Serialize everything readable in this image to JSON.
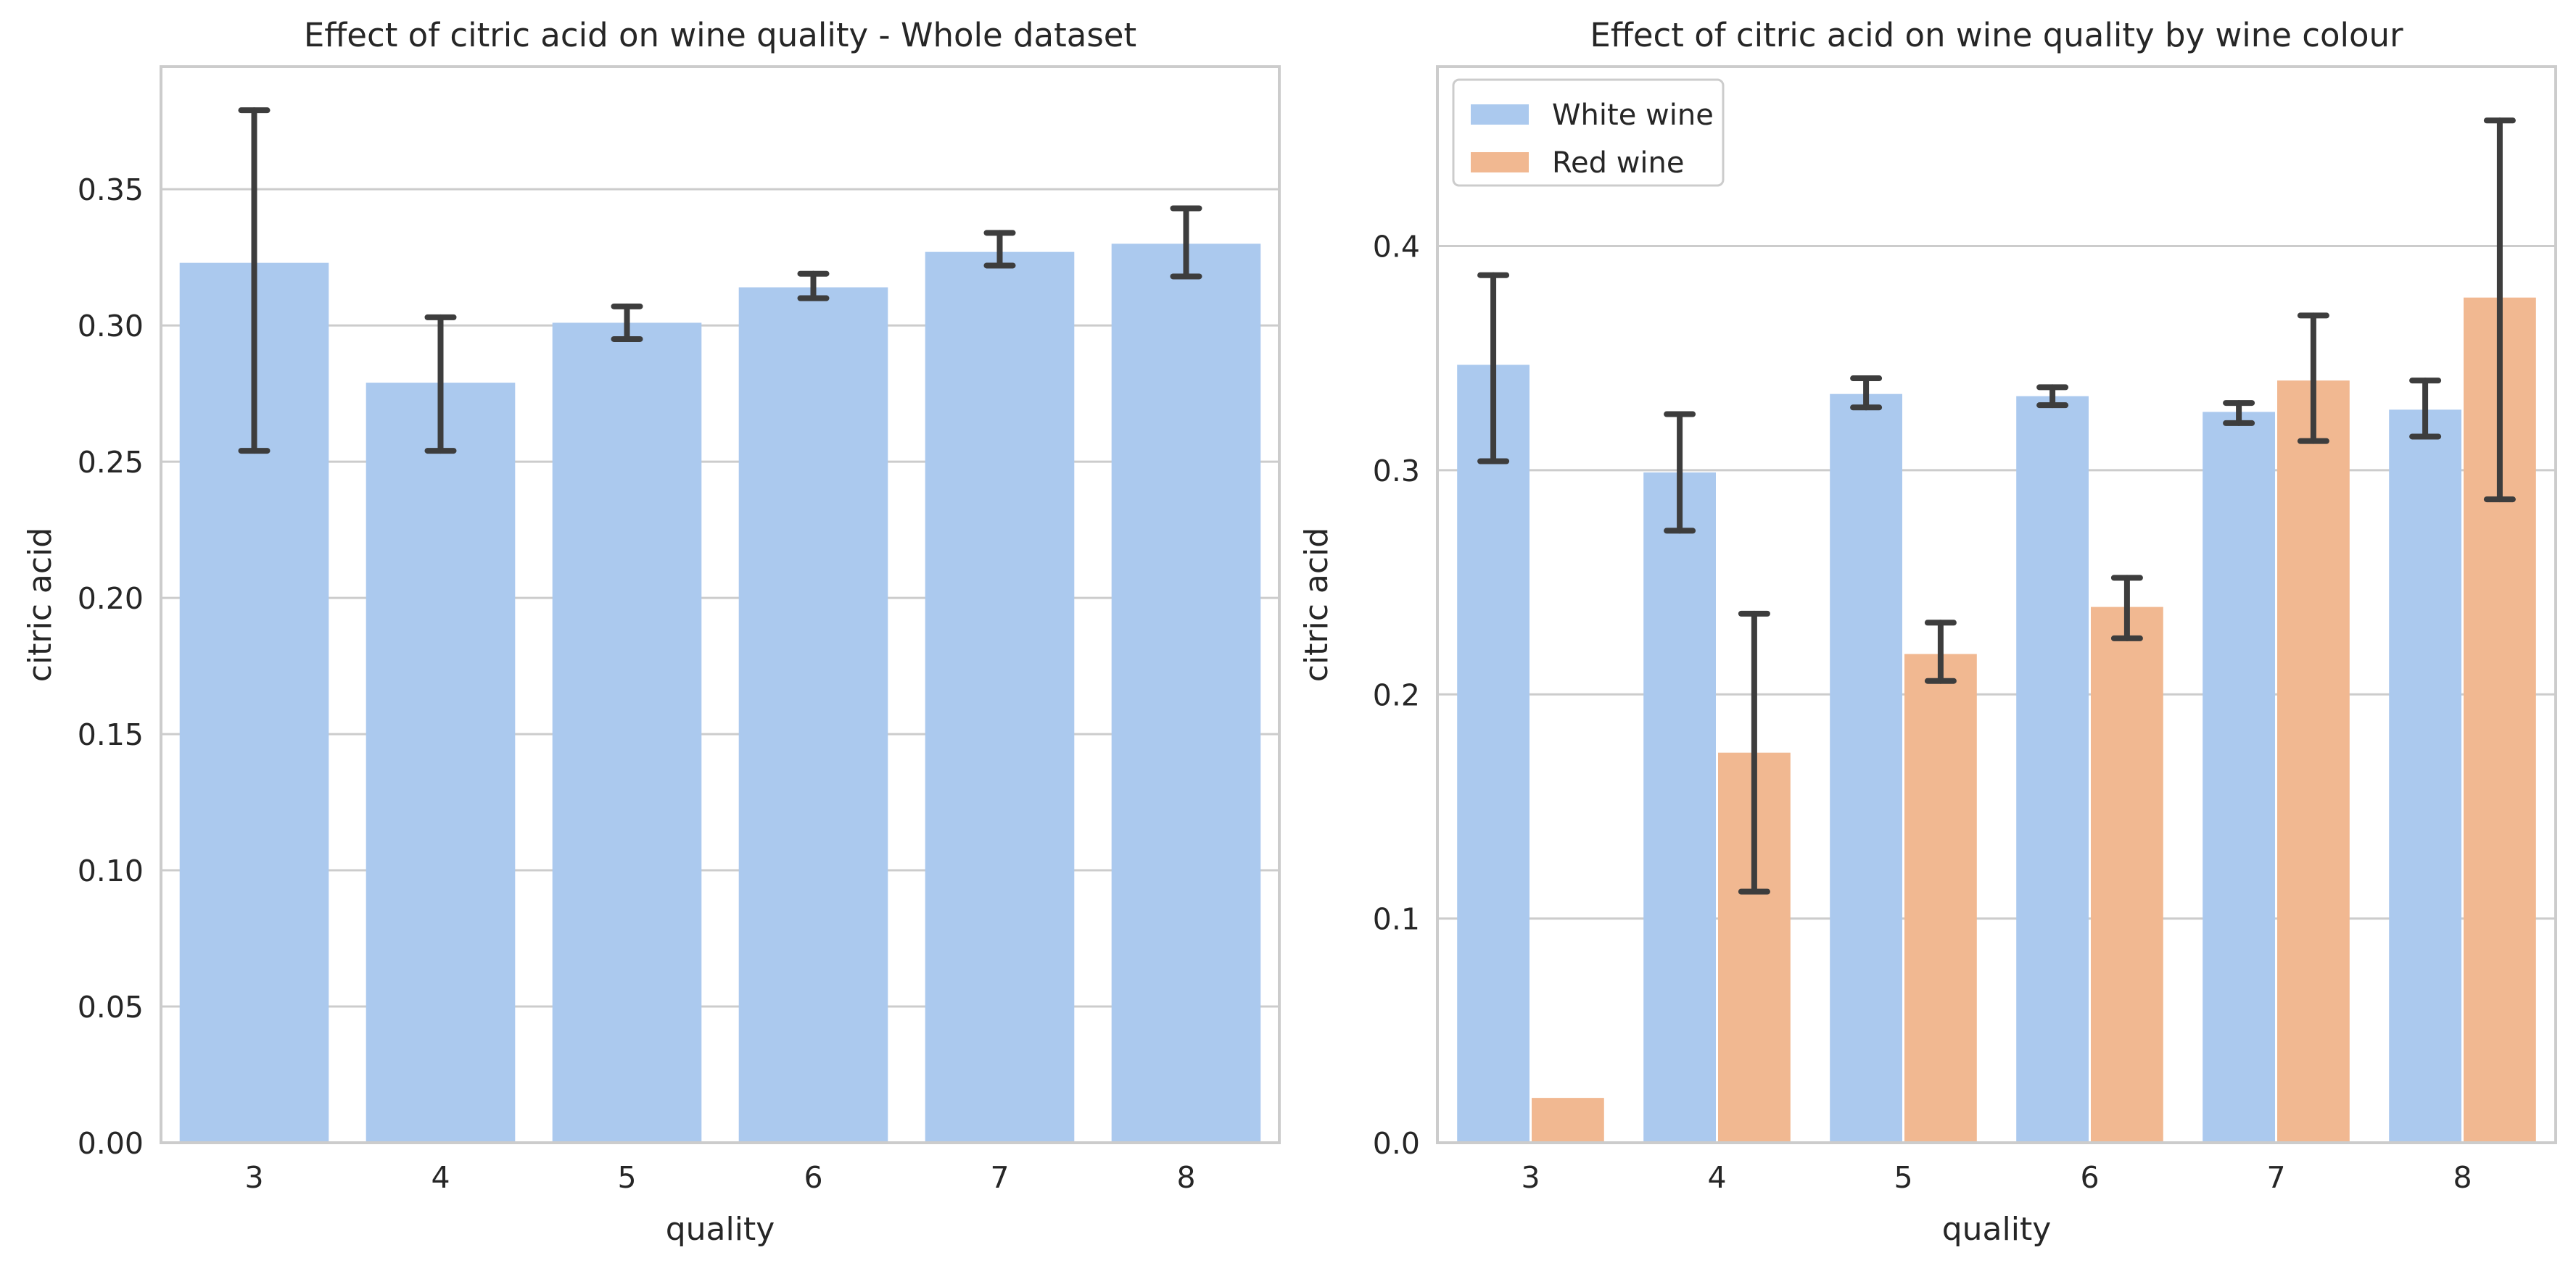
{
  "chart_data": [
    {
      "type": "bar",
      "title": "Effect of citric acid on wine quality - Whole dataset",
      "xlabel": "quality",
      "ylabel": "citric acid",
      "categories": [
        "3",
        "4",
        "5",
        "6",
        "7",
        "8"
      ],
      "ylim": [
        0,
        0.395
      ],
      "yticks": [
        0.0,
        0.05,
        0.1,
        0.15,
        0.2,
        0.25,
        0.3,
        0.35
      ],
      "ytick_labels": [
        "0.00",
        "0.05",
        "0.10",
        "0.15",
        "0.20",
        "0.25",
        "0.30",
        "0.35"
      ],
      "grid": "y",
      "series": [
        {
          "color": "#abc9ee",
          "values": [
            0.323,
            0.279,
            0.301,
            0.314,
            0.327,
            0.33
          ],
          "err_low": [
            0.254,
            0.254,
            0.295,
            0.31,
            0.322,
            0.318
          ],
          "err_high": [
            0.379,
            0.303,
            0.307,
            0.319,
            0.334,
            0.343
          ]
        }
      ]
    },
    {
      "type": "bar",
      "title": "Effect of citric acid on wine quality by wine colour",
      "xlabel": "quality",
      "ylabel": "citric acid",
      "categories": [
        "3",
        "4",
        "5",
        "6",
        "7",
        "8"
      ],
      "ylim": [
        0,
        0.48
      ],
      "yticks": [
        0.0,
        0.1,
        0.2,
        0.3,
        0.4
      ],
      "ytick_labels": [
        "0.0",
        "0.1",
        "0.2",
        "0.3",
        "0.4"
      ],
      "grid": "y",
      "legend": "top-left",
      "series": [
        {
          "name": "White wine",
          "color": "#abc9ee",
          "values": [
            0.347,
            0.299,
            0.334,
            0.333,
            0.326,
            0.327
          ],
          "err_low": [
            0.304,
            0.273,
            0.328,
            0.329,
            0.321,
            0.315
          ],
          "err_high": [
            0.387,
            0.325,
            0.341,
            0.337,
            0.33,
            0.34
          ]
        },
        {
          "name": "Red wine",
          "color": "#f1b891",
          "values": [
            0.02,
            0.174,
            0.218,
            0.239,
            0.34,
            0.377
          ],
          "err_low": [
            null,
            0.112,
            0.206,
            0.225,
            0.313,
            0.287
          ],
          "err_high": [
            null,
            0.236,
            0.232,
            0.252,
            0.369,
            0.456
          ]
        }
      ]
    }
  ]
}
